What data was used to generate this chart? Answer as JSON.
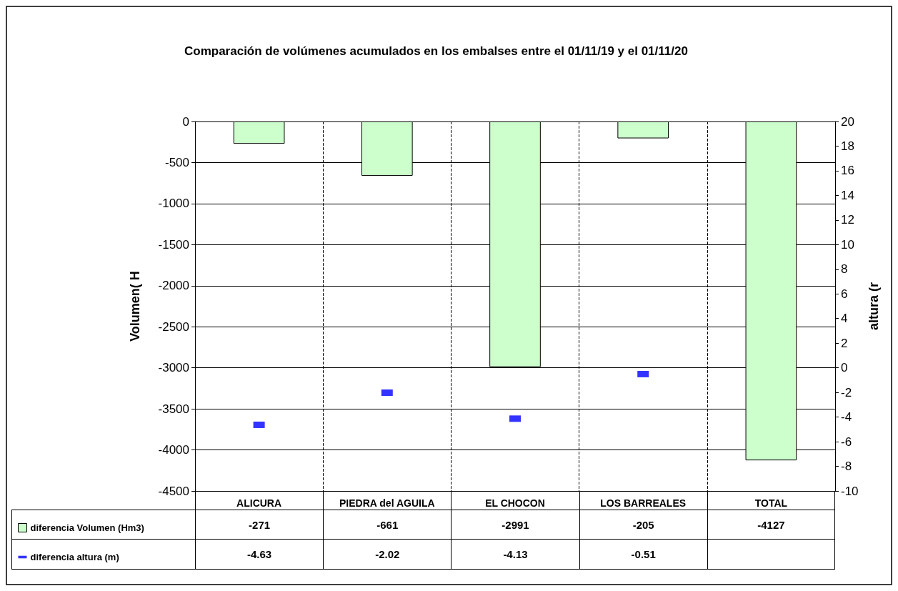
{
  "chart_data": {
    "type": "bar",
    "title": "Comparación de volúmenes acumulados en los embalses entre el 01/11/19 y el 01/11/20",
    "categories": [
      "ALICURA",
      "PIEDRA del AGUILA",
      "EL CHOCON",
      "LOS BARREALES",
      "TOTAL"
    ],
    "series": [
      {
        "name": "diferencia Volumen (Hm3)",
        "color": "#ccffcc",
        "values": [
          -271,
          -661,
          -2991,
          -205,
          -4127
        ]
      },
      {
        "name": "diferencia altura (m)",
        "type": "scatter",
        "axis": "y2",
        "color": "#0000ff",
        "values": [
          -4.63,
          -2.02,
          -4.13,
          -0.51,
          null
        ]
      }
    ],
    "ylabel": "Volumen( H",
    "y2label": "altura (r",
    "ylim": [
      -4500,
      0
    ],
    "yticks": [
      -4500,
      -4000,
      -3500,
      -3000,
      -2500,
      -2000,
      -1500,
      -1000,
      -500,
      0
    ],
    "y2lim": [
      -10,
      20
    ],
    "y2ticks": [
      -10,
      -8,
      -6,
      -4,
      -2,
      0,
      2,
      4,
      6,
      8,
      10,
      12,
      14,
      16,
      18,
      20
    ],
    "grid": true,
    "legend": "bottom",
    "data_labels": true
  }
}
